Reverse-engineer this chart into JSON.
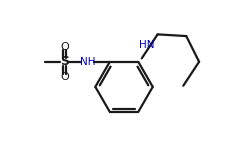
{
  "bg_color": "#ffffff",
  "line_color": "#1a1a1a",
  "text_color": "#1a1a1a",
  "nh_color": "#0000bb",
  "bond_lw": 1.6,
  "figsize": [
    2.26,
    1.56
  ],
  "dpi": 100,
  "xlim": [
    0,
    10
  ],
  "ylim": [
    0,
    7
  ]
}
